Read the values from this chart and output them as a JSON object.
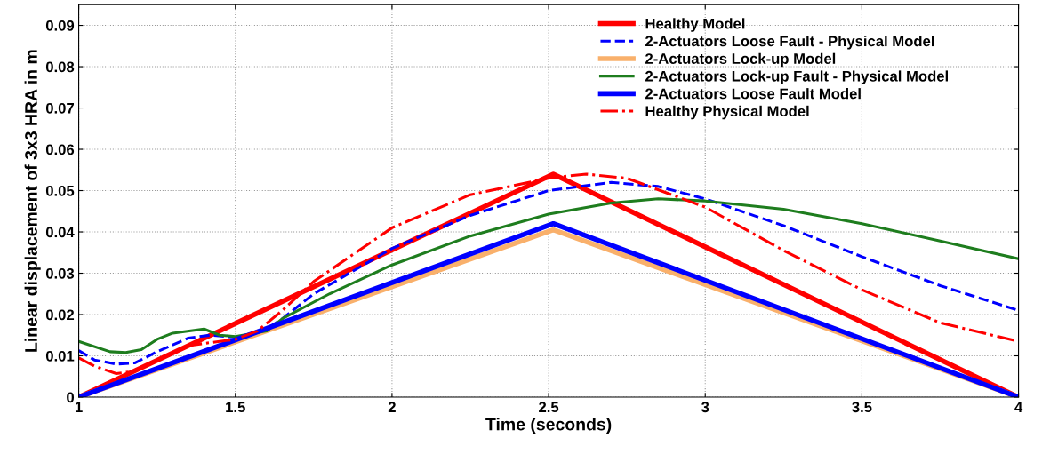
{
  "chart_data": {
    "type": "line",
    "xlabel": "Time (seconds)",
    "ylabel": "Linear displacement of 3x3 HRA in m",
    "xlim": [
      1,
      4
    ],
    "xticks": [
      1,
      1.5,
      2,
      2.5,
      3,
      3.5,
      4
    ],
    "ylim": [
      0,
      0.095
    ],
    "yticks": [
      0,
      0.01,
      0.02,
      0.03,
      0.04,
      0.05,
      0.06,
      0.07,
      0.08,
      0.09
    ],
    "grid": true,
    "legend": "top right",
    "series": [
      {
        "name": "Healthy Model",
        "color": "#ff0000",
        "line_style": "solid",
        "x": [
          1,
          2.515,
          4
        ],
        "values": [
          0,
          0.054,
          0
        ]
      },
      {
        "name": "2-Actuators Loose Fault - Physical Model",
        "color": "#0000ff",
        "line_style": "dashed",
        "x": [
          1,
          1.05,
          1.12,
          1.18,
          1.25,
          1.35,
          1.42,
          1.5,
          1.58,
          1.65,
          1.75,
          2,
          2.25,
          2.5,
          2.7,
          2.85,
          3,
          3.25,
          3.5,
          3.75,
          4
        ],
        "values": [
          0.0113,
          0.009,
          0.008,
          0.0083,
          0.011,
          0.0143,
          0.015,
          0.0145,
          0.0155,
          0.019,
          0.025,
          0.036,
          0.044,
          0.05,
          0.052,
          0.051,
          0.048,
          0.0415,
          0.034,
          0.027,
          0.021
        ]
      },
      {
        "name": "2-Actuators Lock-up Model",
        "color": "#f9b06b",
        "line_style": "solid",
        "x": [
          1,
          2.515,
          4
        ],
        "values": [
          0,
          0.0405,
          0
        ]
      },
      {
        "name": "2-Actuators Lock-up Fault - Physical Model",
        "color": "#1e7d1e",
        "line_style": "solid",
        "x": [
          1,
          1.1,
          1.15,
          1.2,
          1.25,
          1.3,
          1.4,
          1.45,
          1.5,
          1.6,
          1.65,
          1.8,
          2,
          2.25,
          2.5,
          2.7,
          2.85,
          3,
          3.25,
          3.5,
          3.75,
          4
        ],
        "values": [
          0.0135,
          0.011,
          0.0108,
          0.0115,
          0.014,
          0.0155,
          0.0165,
          0.015,
          0.0147,
          0.016,
          0.019,
          0.025,
          0.032,
          0.039,
          0.0443,
          0.047,
          0.048,
          0.0475,
          0.0455,
          0.042,
          0.0378,
          0.0335
        ]
      },
      {
        "name": "2-Actuators Loose Fault Model",
        "color": "#0000ff",
        "line_style": "solid",
        "x": [
          1,
          2.515,
          4
        ],
        "values": [
          0,
          0.042,
          0
        ]
      },
      {
        "name": "Healthy Physical Model",
        "color": "#ff0000",
        "line_style": "dashdot",
        "x": [
          1,
          1.05,
          1.12,
          1.18,
          1.25,
          1.35,
          1.45,
          1.5,
          1.57,
          1.65,
          1.75,
          2,
          2.25,
          2.5,
          2.62,
          2.75,
          3,
          3.25,
          3.5,
          3.75,
          4
        ],
        "values": [
          0.0095,
          0.0075,
          0.0057,
          0.0063,
          0.009,
          0.0125,
          0.0135,
          0.014,
          0.016,
          0.021,
          0.028,
          0.041,
          0.049,
          0.053,
          0.054,
          0.053,
          0.046,
          0.0355,
          0.026,
          0.018,
          0.0135
        ]
      }
    ]
  }
}
